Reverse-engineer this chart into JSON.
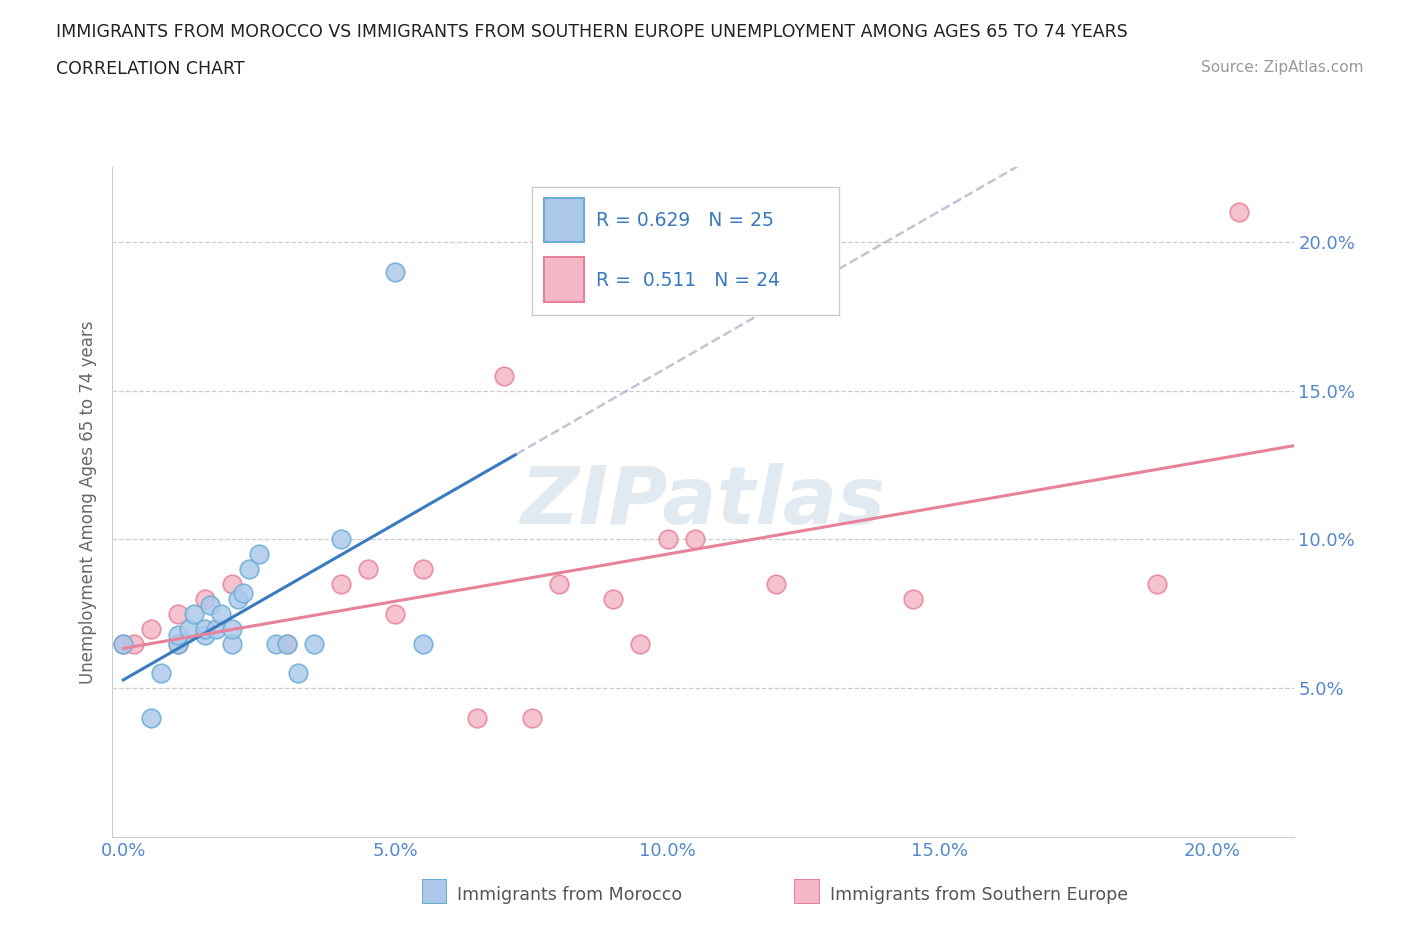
{
  "title_line1": "IMMIGRANTS FROM MOROCCO VS IMMIGRANTS FROM SOUTHERN EUROPE UNEMPLOYMENT AMONG AGES 65 TO 74 YEARS",
  "title_line2": "CORRELATION CHART",
  "source_text": "Source: ZipAtlas.com",
  "ylabel": "Unemployment Among Ages 65 to 74 years",
  "xlim": [
    -0.002,
    0.215
  ],
  "ylim": [
    0.0,
    0.225
  ],
  "xticks": [
    0.0,
    0.05,
    0.1,
    0.15,
    0.2
  ],
  "yticks": [
    0.05,
    0.1,
    0.15,
    0.2
  ],
  "xticklabels": [
    "0.0%",
    "5.0%",
    "10.0%",
    "15.0%",
    "20.0%"
  ],
  "yticklabels": [
    "5.0%",
    "10.0%",
    "15.0%",
    "20.0%"
  ],
  "morocco_color": "#adc9ea",
  "morocco_edge": "#6aaed6",
  "southern_color": "#f4b8c8",
  "southern_edge": "#e8829a",
  "morocco_line_color": "#3a7abf",
  "southern_line_color": "#e8829a",
  "dash_color": "#b0b8c8",
  "watermark_color": "#d0dce8",
  "R_morocco": 0.629,
  "N_morocco": 25,
  "R_southern": 0.511,
  "N_southern": 24,
  "legend_label1": "Immigrants from Morocco",
  "legend_label2": "Immigrants from Southern Europe",
  "morocco_x": [
    0.0,
    0.005,
    0.007,
    0.01,
    0.01,
    0.012,
    0.013,
    0.015,
    0.015,
    0.016,
    0.017,
    0.018,
    0.02,
    0.02,
    0.021,
    0.022,
    0.023,
    0.025,
    0.028,
    0.03,
    0.032,
    0.035,
    0.04,
    0.05,
    0.055
  ],
  "morocco_y": [
    0.065,
    0.04,
    0.055,
    0.065,
    0.068,
    0.07,
    0.075,
    0.068,
    0.07,
    0.078,
    0.07,
    0.075,
    0.065,
    0.07,
    0.08,
    0.082,
    0.09,
    0.095,
    0.065,
    0.065,
    0.055,
    0.065,
    0.1,
    0.19,
    0.065
  ],
  "southern_x": [
    0.0,
    0.002,
    0.005,
    0.01,
    0.01,
    0.015,
    0.02,
    0.03,
    0.04,
    0.045,
    0.05,
    0.055,
    0.065,
    0.07,
    0.075,
    0.08,
    0.09,
    0.095,
    0.1,
    0.105,
    0.12,
    0.145,
    0.19,
    0.205
  ],
  "southern_y": [
    0.065,
    0.065,
    0.07,
    0.065,
    0.075,
    0.08,
    0.085,
    0.065,
    0.085,
    0.09,
    0.075,
    0.09,
    0.04,
    0.155,
    0.04,
    0.085,
    0.08,
    0.065,
    0.1,
    0.1,
    0.085,
    0.08,
    0.085,
    0.21
  ],
  "background_color": "#ffffff",
  "grid_color": "#cccccc",
  "title_color": "#222222",
  "tick_color": "#5588cc"
}
